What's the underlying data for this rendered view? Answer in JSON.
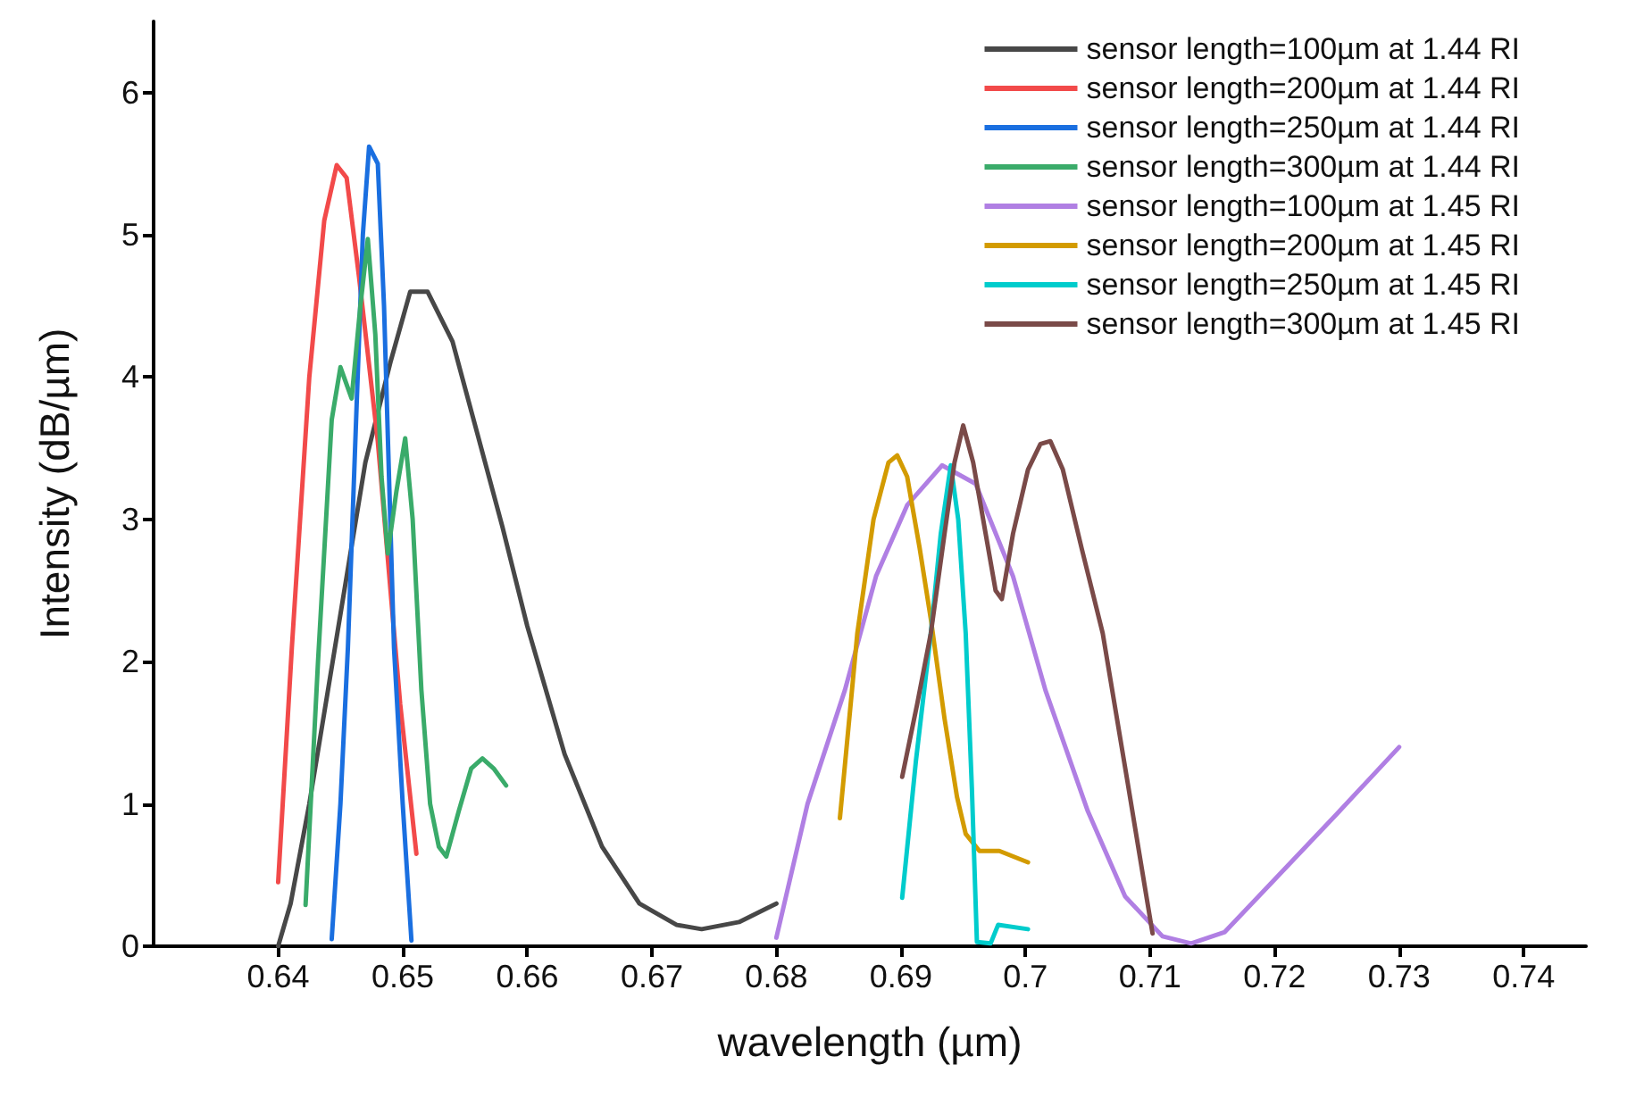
{
  "chart_data": {
    "type": "line",
    "xlabel": "wavelength (µm)",
    "ylabel": "Intensity (dB/µm)",
    "xlim": [
      0.63,
      0.745
    ],
    "xticks": [
      0.64,
      0.65,
      0.66,
      0.67,
      0.68,
      0.69,
      0.7,
      0.71,
      0.72,
      0.73,
      0.74
    ],
    "ylim": [
      0,
      6.5
    ],
    "yticks": [
      0,
      1,
      2,
      3,
      4,
      5,
      6
    ],
    "grid": false,
    "legend": "top right",
    "marker": "none",
    "line_style": "solid",
    "series": [
      {
        "name": "sensor length=100µm at 1.44 RI",
        "color": "#474747",
        "x": [
          0.64,
          0.641,
          0.6425,
          0.644,
          0.6455,
          0.647,
          0.649,
          0.6506,
          0.652,
          0.654,
          0.656,
          0.658,
          0.66,
          0.663,
          0.666,
          0.669,
          0.672,
          0.674,
          0.677,
          0.68
        ],
        "values": [
          0,
          0.3,
          1.0,
          1.8,
          2.6,
          3.4,
          4.1,
          4.6,
          4.6,
          4.25,
          3.6,
          2.95,
          2.25,
          1.35,
          0.7,
          0.3,
          0.15,
          0.12,
          0.17,
          0.3
        ]
      },
      {
        "name": "sensor length=200µm at 1.44 RI",
        "color": "#f24a4a",
        "x": [
          0.64,
          0.6411,
          0.6425,
          0.6437,
          0.6447,
          0.6455,
          0.6465,
          0.648,
          0.6498,
          0.6511
        ],
        "values": [
          0.45,
          2.1,
          4.0,
          5.1,
          5.49,
          5.4,
          4.7,
          3.55,
          1.7,
          0.65
        ]
      },
      {
        "name": "sensor length=250µm at 1.44 RI",
        "color": "#1a6fe0",
        "x": [
          0.6443,
          0.645,
          0.6456,
          0.6463,
          0.6468,
          0.6473,
          0.648,
          0.6485,
          0.6489,
          0.6493,
          0.65,
          0.6507
        ],
        "values": [
          0.05,
          1.0,
          2.1,
          3.8,
          5.0,
          5.62,
          5.5,
          4.5,
          3.3,
          2.1,
          1.0,
          0.04
        ]
      },
      {
        "name": "sensor length=300µm at 1.44 RI",
        "color": "#3aab6a",
        "x": [
          0.6422,
          0.6432,
          0.6443,
          0.645,
          0.6459,
          0.6466,
          0.6472,
          0.6478,
          0.6483,
          0.6488,
          0.6495,
          0.6502,
          0.6508,
          0.6515,
          0.6522,
          0.6529,
          0.6535,
          0.6545,
          0.6555,
          0.6564,
          0.6573,
          0.6583
        ],
        "values": [
          0.29,
          2.0,
          3.7,
          4.07,
          3.85,
          4.5,
          4.97,
          4.3,
          3.3,
          2.76,
          3.2,
          3.57,
          3.0,
          1.8,
          1.0,
          0.7,
          0.63,
          0.95,
          1.25,
          1.32,
          1.25,
          1.13
        ]
      },
      {
        "name": "sensor length=100µm at 1.45 RI",
        "color": "#b07fe3",
        "x": [
          0.68,
          0.6825,
          0.6855,
          0.688,
          0.6905,
          0.6933,
          0.696,
          0.699,
          0.7016,
          0.705,
          0.708,
          0.711,
          0.7133,
          0.716,
          0.7199,
          0.725,
          0.73
        ],
        "values": [
          0.06,
          1.0,
          1.8,
          2.6,
          3.1,
          3.38,
          3.25,
          2.6,
          1.8,
          0.95,
          0.35,
          0.07,
          0.02,
          0.1,
          0.46,
          0.93,
          1.4
        ]
      },
      {
        "name": "sensor length=200µm at 1.45 RI",
        "color": "#d39b00",
        "x": [
          0.6851,
          0.6865,
          0.6878,
          0.689,
          0.6897,
          0.6905,
          0.6915,
          0.6924,
          0.6935,
          0.6945,
          0.6952,
          0.6963,
          0.6979,
          0.7002
        ],
        "values": [
          0.9,
          2.2,
          3.0,
          3.4,
          3.45,
          3.3,
          2.8,
          2.3,
          1.6,
          1.05,
          0.79,
          0.67,
          0.67,
          0.59
        ]
      },
      {
        "name": "sensor length=250µm at 1.45 RI",
        "color": "#00cccc",
        "x": [
          0.6901,
          0.6912,
          0.6924,
          0.6932,
          0.694,
          0.6946,
          0.6952,
          0.6957,
          0.6961,
          0.6972,
          0.6978,
          0.7002
        ],
        "values": [
          0.34,
          1.3,
          2.2,
          2.9,
          3.38,
          3.0,
          2.2,
          1.1,
          0.03,
          0.02,
          0.15,
          0.12
        ]
      },
      {
        "name": "sensor length=300µm at 1.45 RI",
        "color": "#7a4a48",
        "x": [
          0.6901,
          0.6913,
          0.6924,
          0.6935,
          0.6943,
          0.695,
          0.6958,
          0.6968,
          0.6976,
          0.6981,
          0.699,
          0.7002,
          0.7012,
          0.702,
          0.703,
          0.7045,
          0.7062,
          0.7082,
          0.7102
        ],
        "values": [
          1.19,
          1.7,
          2.2,
          2.9,
          3.4,
          3.66,
          3.4,
          2.9,
          2.5,
          2.44,
          2.9,
          3.35,
          3.53,
          3.55,
          3.35,
          2.8,
          2.2,
          1.15,
          0.09
        ]
      }
    ]
  }
}
